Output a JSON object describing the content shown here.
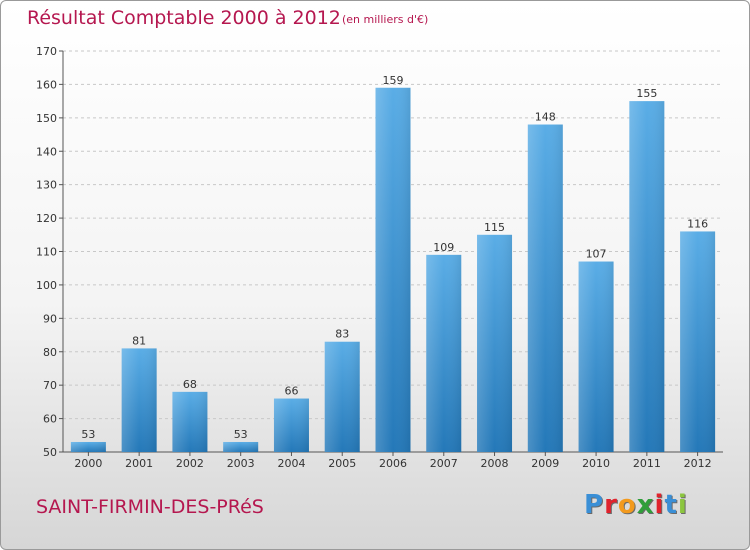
{
  "page": {
    "town": "SAINT-FIRMIN-DES-PRéS",
    "brand": {
      "text": "Proxiti",
      "letter_colors": [
        "#3a8fd6",
        "#e0232d",
        "#f39a1d",
        "#2f9e3a",
        "#e0232d",
        "#3a8fd6",
        "#8cc63f"
      ]
    }
  },
  "chart_data": {
    "type": "bar",
    "title": "Résultat Comptable 2000 à 2012",
    "subtitle": "(en milliers d'€)",
    "xlabel": "",
    "ylabel": "",
    "categories": [
      "2000",
      "2001",
      "2002",
      "2003",
      "2004",
      "2005",
      "2006",
      "2007",
      "2008",
      "2009",
      "2010",
      "2011",
      "2012"
    ],
    "values": [
      53,
      81,
      68,
      53,
      66,
      83,
      159,
      109,
      115,
      148,
      107,
      155,
      116
    ],
    "ylim": [
      50,
      170
    ],
    "yticks": [
      50,
      60,
      70,
      80,
      90,
      100,
      110,
      120,
      130,
      140,
      150,
      160,
      170
    ],
    "grid": true,
    "colors": {
      "bar_top": "#5aade6",
      "bar_bottom": "#2478b8",
      "title": "#b5174f"
    }
  }
}
